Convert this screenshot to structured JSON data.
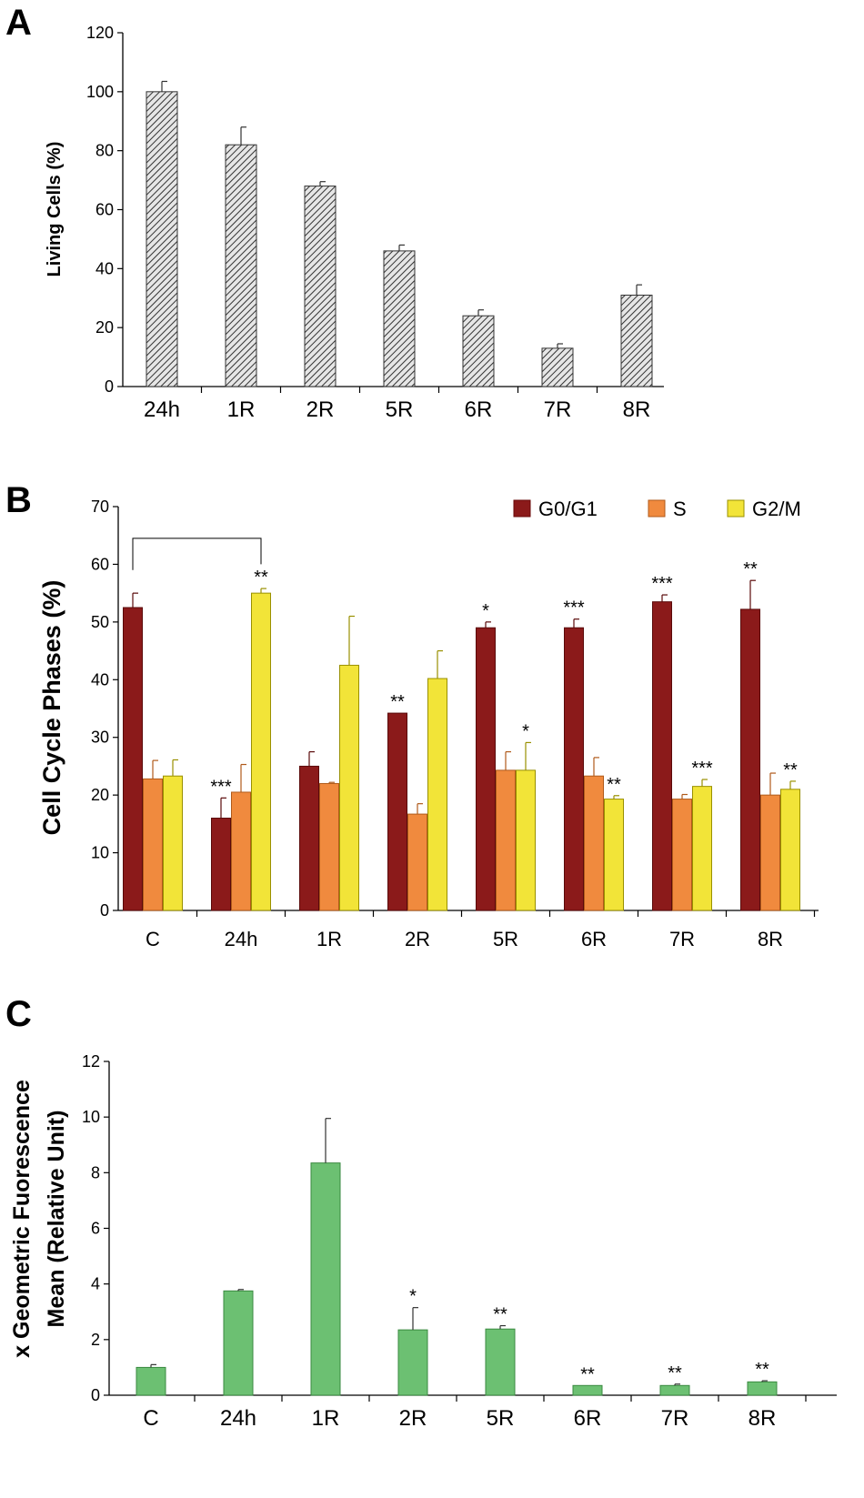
{
  "panels": [
    "A",
    "B",
    "C"
  ],
  "chart_data": [
    {
      "type": "bar",
      "panel_label": "A",
      "title": "",
      "xlabel": "",
      "ylabel": "Living Cells (%)",
      "ylim": [
        0,
        120
      ],
      "yticks": [
        0,
        20,
        40,
        60,
        80,
        100,
        120
      ],
      "grid": false,
      "categories": [
        "24h",
        "1R",
        "2R",
        "5R",
        "6R",
        "7R",
        "8R"
      ],
      "series": [
        {
          "name": "Living Cells",
          "color": "#d9d9d9",
          "pattern": "diagonal-hatch",
          "values": [
            100,
            82,
            68,
            46,
            24,
            13,
            31
          ],
          "errors": [
            3.5,
            6,
            1.5,
            2,
            2,
            1.5,
            3.5
          ]
        }
      ]
    },
    {
      "type": "bar",
      "panel_label": "B",
      "title": "",
      "xlabel": "",
      "ylabel": "Cell Cycle Phases (%)",
      "ylim": [
        0,
        70
      ],
      "yticks": [
        0,
        10,
        20,
        30,
        40,
        50,
        60,
        70
      ],
      "grid": false,
      "legend": "top-right",
      "categories": [
        "C",
        "24h",
        "1R",
        "2R",
        "5R",
        "6R",
        "7R",
        "8R"
      ],
      "series": [
        {
          "name": "G0/G1",
          "color": "#8b1a1a",
          "values": [
            52.5,
            16,
            25,
            34.2,
            49,
            49,
            53.5,
            52.2
          ],
          "errors": [
            2.5,
            3.5,
            2.5,
            0,
            1,
            1.5,
            1.2,
            5
          ],
          "annotations": [
            "",
            "***",
            "",
            "**",
            "*",
            "***",
            "***",
            "**"
          ]
        },
        {
          "name": "S",
          "color": "#f08a3e",
          "values": [
            22.8,
            20.5,
            22,
            16.7,
            24.3,
            23.3,
            19.3,
            20
          ],
          "errors": [
            3.2,
            4.8,
            0.2,
            1.8,
            3.2,
            3.2,
            0.8,
            3.8
          ],
          "annotations": [
            "",
            "",
            "",
            "",
            "",
            "",
            "",
            ""
          ]
        },
        {
          "name": "G2/M",
          "color": "#f2e438",
          "values": [
            23.3,
            55,
            42.5,
            40.2,
            24.3,
            19.3,
            21.5,
            21
          ],
          "errors": [
            2.8,
            0.8,
            8.5,
            4.8,
            4.8,
            0.6,
            1.2,
            1.4
          ],
          "annotations": [
            "",
            "**",
            "",
            "",
            "*",
            "**",
            "***",
            "**"
          ]
        }
      ],
      "bracket": {
        "from": "C",
        "to": "24h"
      }
    },
    {
      "type": "bar",
      "panel_label": "C",
      "title": "",
      "xlabel": "",
      "ylabel": [
        "x Geometric Fuorescence",
        "Mean (Relative Unit)"
      ],
      "ylim": [
        0,
        12
      ],
      "yticks": [
        0,
        2,
        4,
        6,
        8,
        10,
        12
      ],
      "grid": false,
      "categories": [
        "C",
        "24h",
        "1R",
        "2R",
        "5R",
        "6R",
        "7R",
        "8R"
      ],
      "series": [
        {
          "name": "Fluorescence",
          "color": "#6cc072",
          "values": [
            1,
            3.75,
            8.35,
            2.35,
            2.38,
            0.35,
            0.35,
            0.48
          ],
          "errors": [
            0.1,
            0.05,
            1.6,
            0.8,
            0.12,
            0,
            0.05,
            0.04
          ],
          "annotations": [
            "",
            "",
            "",
            "*",
            "**",
            "**",
            "**",
            "**"
          ]
        }
      ]
    }
  ]
}
